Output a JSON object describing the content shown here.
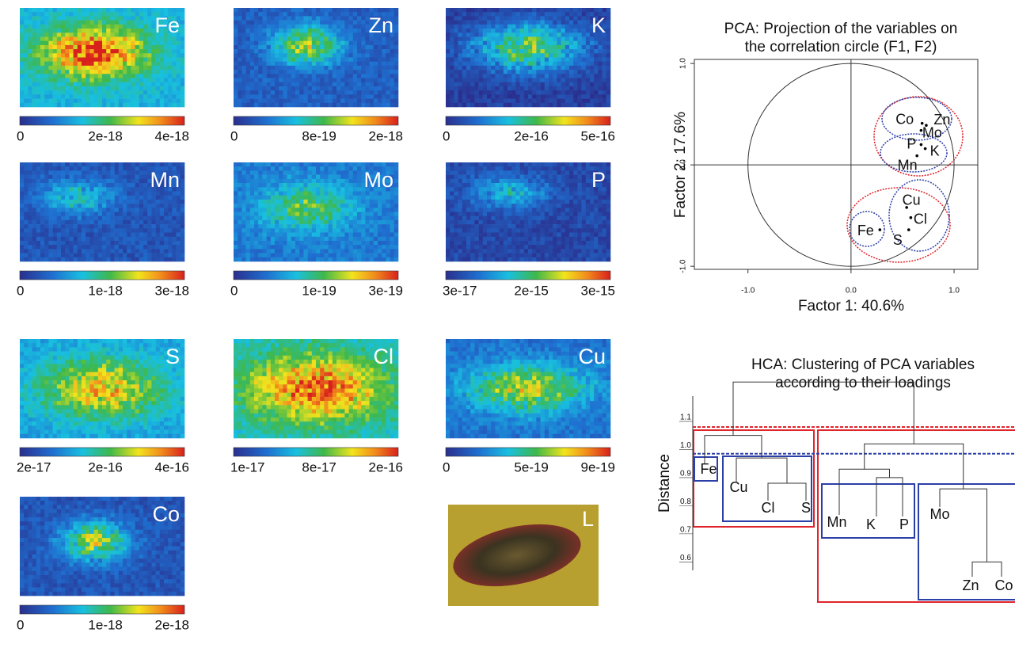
{
  "maps": [
    {
      "label": "Fe",
      "colorbar_ticks": [
        0,
        2e-18,
        4e-18
      ]
    },
    {
      "label": "Zn",
      "colorbar_ticks": [
        0,
        8e-19,
        2e-18
      ]
    },
    {
      "label": "K",
      "colorbar_ticks": [
        0,
        2e-16,
        5e-16
      ]
    },
    {
      "label": "Mn",
      "colorbar_ticks": [
        0,
        1e-18,
        3e-18
      ]
    },
    {
      "label": "Mo",
      "colorbar_ticks": [
        0,
        1e-19,
        3e-19
      ]
    },
    {
      "label": "P",
      "colorbar_ticks": [
        3e-17,
        2e-15,
        3e-15
      ]
    },
    {
      "label": "S",
      "colorbar_ticks": [
        2e-17,
        2e-16,
        4e-16
      ]
    },
    {
      "label": "Cl",
      "colorbar_ticks": [
        1e-17,
        8e-17,
        2e-16
      ]
    },
    {
      "label": "Cu",
      "colorbar_ticks": [
        0,
        5e-19,
        9e-19
      ]
    },
    {
      "label": "Co",
      "colorbar_ticks": [
        0,
        1e-18,
        2e-18
      ]
    },
    {
      "label": "L"
    }
  ],
  "pca": {
    "type": "scatter",
    "title": [
      "PCA: Projection of the variables on",
      "the correlation circle (F1, F2)"
    ],
    "x_label": "Factor 1: 40.6%",
    "y_label": "Factor 2: 17.6%",
    "xlim": [
      -1.52,
      1.23
    ],
    "ylim": [
      -1.03,
      1.04
    ],
    "xticks": [
      {
        "value": -1,
        "label": "-1.0"
      },
      {
        "value": 0,
        "label": "0.0"
      },
      {
        "value": 1,
        "label": "1.0"
      }
    ],
    "yticks": [
      {
        "value": -1,
        "label": "-1.0"
      },
      {
        "value": 0,
        "label": "0.0"
      },
      {
        "value": 1,
        "label": "1.0"
      }
    ],
    "points": [
      {
        "name": "Co",
        "x": 0.69,
        "y": 0.41
      },
      {
        "name": "Zn",
        "x": 0.73,
        "y": 0.39
      },
      {
        "name": "Mo",
        "x": 0.68,
        "y": 0.34
      },
      {
        "name": "P",
        "x": 0.68,
        "y": 0.2
      },
      {
        "name": "K",
        "x": 0.72,
        "y": 0.16
      },
      {
        "name": "Mn",
        "x": 0.64,
        "y": 0.09
      },
      {
        "name": "Cu",
        "x": 0.54,
        "y": -0.42
      },
      {
        "name": "Cl",
        "x": 0.58,
        "y": -0.52
      },
      {
        "name": "S",
        "x": 0.56,
        "y": -0.64
      },
      {
        "name": "Fe",
        "x": 0.28,
        "y": -0.64
      }
    ]
  },
  "hca": {
    "type": "dendrogram",
    "title": [
      "HCA: Clustering of PCA variables",
      "according to their loadings"
    ],
    "y_label": "Distance",
    "ylim": [
      0.57,
      1.19
    ],
    "yticks": [
      0.6,
      0.7,
      0.8,
      0.9,
      {
        "value": 1,
        "label": "1.0"
      },
      1.1
    ],
    "leaves": [
      "Fe",
      "Cu",
      "Cl",
      "S",
      "Mn",
      "K",
      "P",
      "Mo",
      "Zn",
      "Co"
    ],
    "merges": [
      {
        "left": 2,
        "right": 3,
        "height": 0.88
      },
      {
        "left": 1,
        "right": 10,
        "height": 0.97
      },
      {
        "left": 0,
        "right": 11,
        "height": 1.05
      },
      {
        "left": 5,
        "right": 6,
        "height": 0.9
      },
      {
        "left": 4,
        "right": 13,
        "height": 0.93
      },
      {
        "left": 8,
        "right": 9,
        "height": 0.6
      },
      {
        "left": 7,
        "right": 15,
        "height": 0.86
      },
      {
        "left": 14,
        "right": 16,
        "height": 1.02
      },
      {
        "left": 12,
        "right": 17,
        "height": 1.24
      }
    ],
    "cut_lines": [
      {
        "height": 1.08,
        "color": "#e0242b"
      },
      {
        "height": 0.985,
        "color": "#2b3fa8"
      }
    ]
  }
}
